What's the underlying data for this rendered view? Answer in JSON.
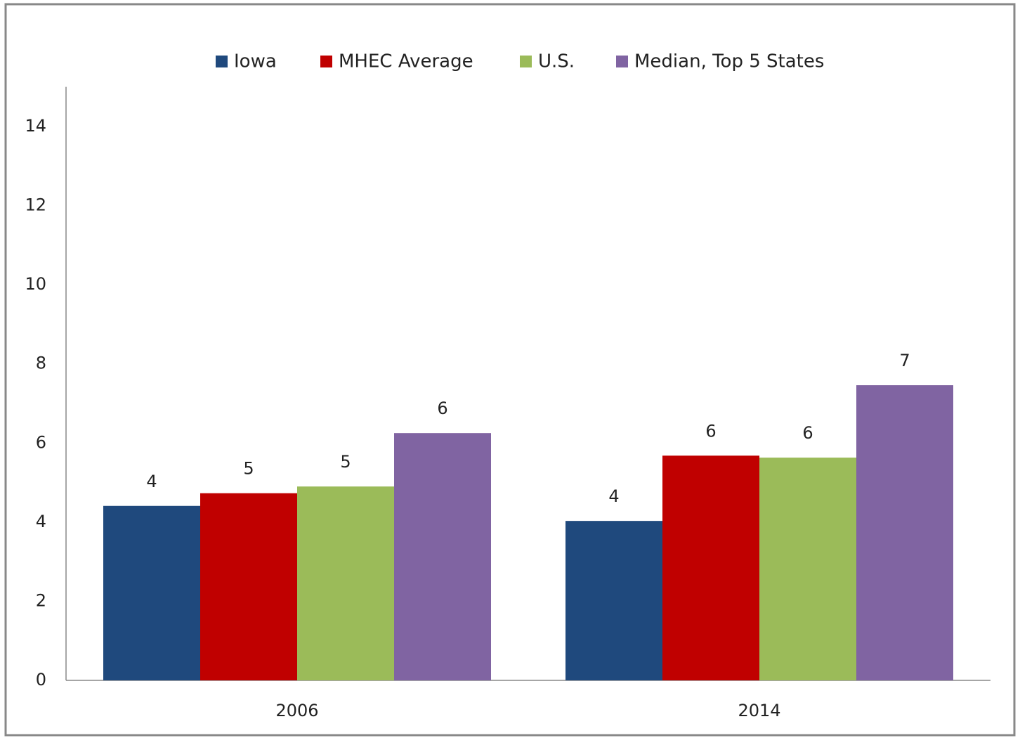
{
  "chart_data": {
    "type": "bar",
    "categories": [
      "2006",
      "2014"
    ],
    "series": [
      {
        "name": "Iowa",
        "color": "#1f497d",
        "values": [
          4.41,
          4.03
        ],
        "value_labels": [
          "4",
          "4"
        ]
      },
      {
        "name": "MHEC Average",
        "color": "#c00000",
        "values": [
          4.73,
          5.68
        ],
        "value_labels": [
          "5",
          "6"
        ]
      },
      {
        "name": "U.S.",
        "color": "#9bbb59",
        "values": [
          4.9,
          5.63
        ],
        "value_labels": [
          "5",
          "6"
        ]
      },
      {
        "name": "Median, Top 5 States",
        "color": "#8064a2",
        "values": [
          6.25,
          7.46
        ],
        "value_labels": [
          "6",
          "7"
        ]
      }
    ],
    "ylim": [
      0,
      15
    ],
    "yticks": [
      0,
      2,
      4,
      6,
      8,
      10,
      12,
      14
    ],
    "grid": false,
    "legend": "top"
  }
}
